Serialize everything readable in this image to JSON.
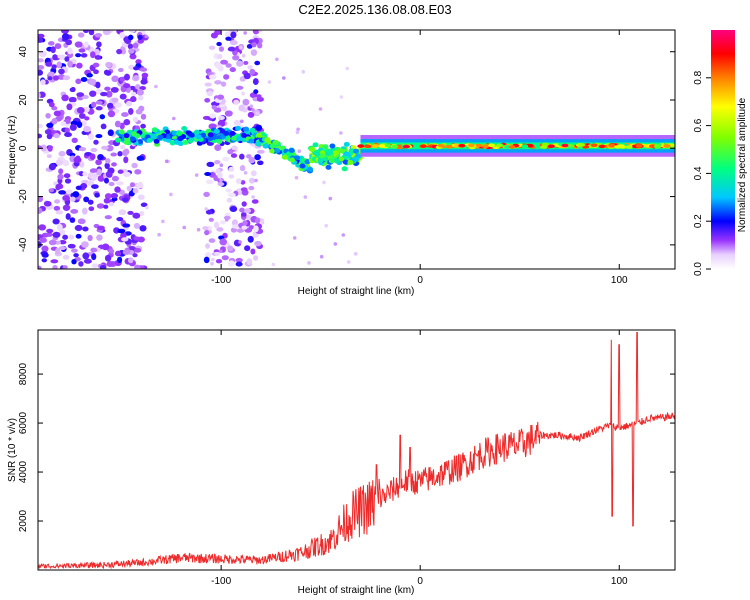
{
  "title": "C2E2.2025.136.08.08.E03",
  "chart_data": [
    {
      "type": "heatmap",
      "xlabel": "Height of straight line (km)",
      "ylabel": "Frequency (Hz)",
      "xlim": [
        -192,
        128
      ],
      "ylim": [
        -50,
        49
      ],
      "xticks": [
        -100,
        0,
        100
      ],
      "yticks": [
        -40,
        -20,
        0,
        20,
        40
      ],
      "colorbar": {
        "label": "Normalized spectral amplitude",
        "range": [
          0,
          1
        ],
        "ticks": [
          0.0,
          0.2,
          0.4,
          0.6,
          0.8
        ]
      },
      "regions": [
        {
          "name": "noise-left",
          "x": [
            -192,
            -138
          ],
          "freq": [
            -50,
            49
          ],
          "amplitude": 0.1
        },
        {
          "name": "noise-mid",
          "x": [
            -108,
            -80
          ],
          "freq": [
            -50,
            49
          ],
          "amplitude": 0.08
        },
        {
          "name": "signal-flat",
          "x": [
            -152,
            -82
          ],
          "freq_center": 5,
          "amplitude": 0.35
        },
        {
          "name": "signal-descent",
          "x": [
            -82,
            -55
          ],
          "freq_center": 5,
          "freq_end": -8,
          "amplitude": 0.4
        },
        {
          "name": "signal-transition",
          "x": [
            -55,
            -30
          ],
          "freq_center": -3,
          "amplitude": 0.45
        },
        {
          "name": "carrier",
          "x": [
            -30,
            128
          ],
          "freq_center": 1,
          "amplitude": 0.9
        }
      ]
    },
    {
      "type": "line",
      "series": [
        {
          "name": "SNR",
          "color": "#ee2a2a"
        }
      ],
      "xlabel": "Height of straight line (km)",
      "ylabel": "SNR (10 * v/v)",
      "xlim": [
        -192,
        128
      ],
      "ylim": [
        0,
        9800
      ],
      "xticks": [
        -100,
        0,
        100
      ],
      "yticks": [
        2000,
        4000,
        6000,
        8000
      ],
      "x": [
        -192,
        -160,
        -140,
        -120,
        -100,
        -80,
        -60,
        -45,
        -35,
        -25,
        -15,
        -8,
        0,
        10,
        20,
        30,
        40,
        50,
        60,
        70,
        80,
        88,
        95,
        100,
        105,
        110,
        115,
        120,
        128
      ],
      "values": [
        150,
        200,
        300,
        500,
        450,
        400,
        700,
        1200,
        2200,
        2600,
        3200,
        3600,
        3600,
        3900,
        4200,
        4700,
        5000,
        5100,
        5500,
        5500,
        5400,
        5700,
        5900,
        5800,
        5900,
        6000,
        6200,
        6200,
        6300
      ],
      "spikes": [
        {
          "x": -22,
          "value": 4300
        },
        {
          "x": -10,
          "value": 5500
        },
        {
          "x": -5,
          "value": 5000
        },
        {
          "x": 96,
          "value": 9400
        },
        {
          "x": 96.5,
          "value": 2200
        },
        {
          "x": 100,
          "value": 9200
        },
        {
          "x": 107,
          "value": 1800
        },
        {
          "x": 109,
          "value": 9700
        }
      ]
    }
  ]
}
